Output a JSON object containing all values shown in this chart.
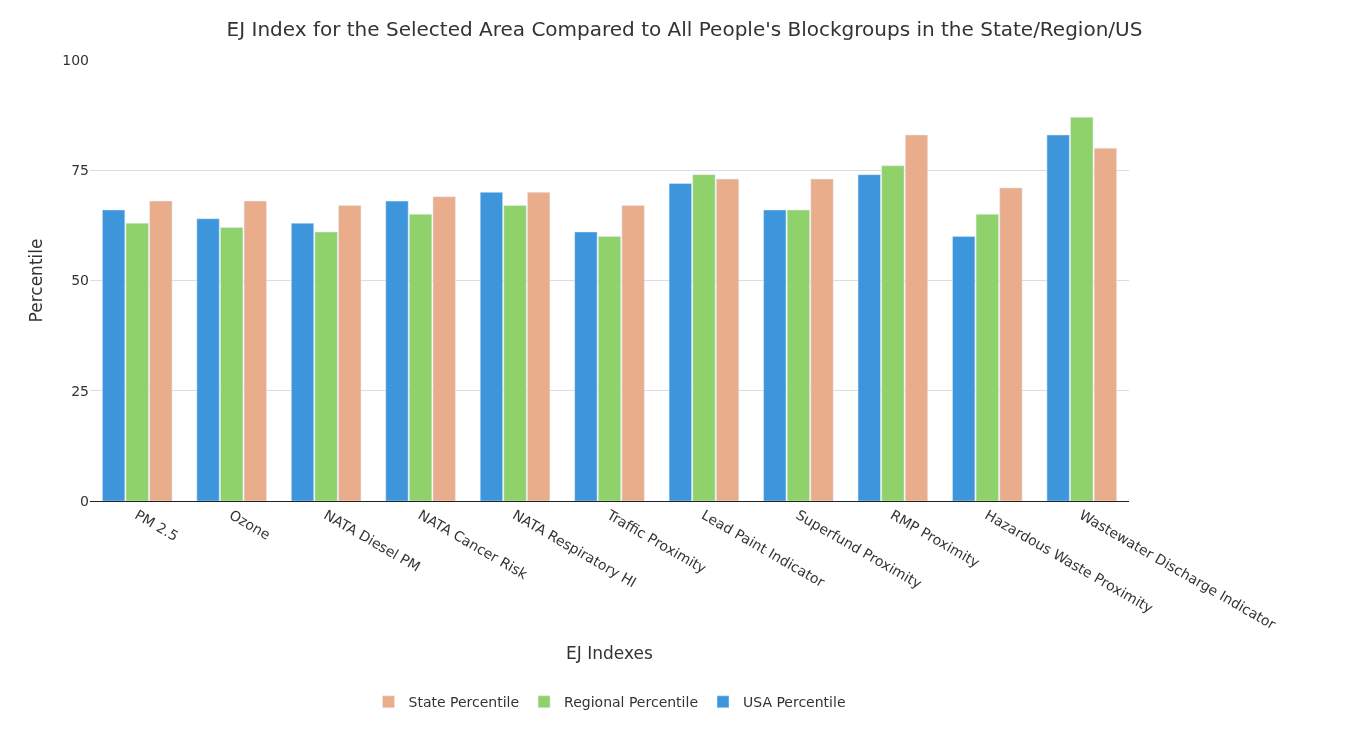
{
  "chart_data": {
    "type": "bar",
    "title": "EJ Index for the Selected Area Compared to All People's Blockgroups in the State/Region/US",
    "xlabel": "EJ Indexes",
    "ylabel": "Percentile",
    "categories": [
      "PM 2.5",
      "Ozone",
      "NATA Diesel PM",
      "NATA Cancer Risk",
      "NATA Respiratory HI",
      "Traffic Proximity",
      "Lead Paint Indicator",
      "Superfund Proximity",
      "RMP Proximity",
      "Hazardous Waste Proximity",
      "Wastewater Discharge Indicator"
    ],
    "series": [
      {
        "name": "USA Percentile",
        "color": "#3d95dc",
        "values": [
          66,
          64,
          63,
          68,
          70,
          61,
          72,
          66,
          74,
          60,
          83
        ]
      },
      {
        "name": "Regional Percentile",
        "color": "#8fd16a",
        "values": [
          63,
          62,
          61,
          65,
          67,
          60,
          74,
          66,
          76,
          65,
          87
        ]
      },
      {
        "name": "State Percentile",
        "color": "#e9ad8c",
        "values": [
          68,
          68,
          67,
          69,
          70,
          67,
          73,
          73,
          83,
          71,
          80
        ]
      }
    ],
    "ylim": [
      0,
      100
    ],
    "yticks": [
      0,
      25,
      50,
      75,
      100
    ],
    "grid": "y",
    "legend": "bottom"
  }
}
